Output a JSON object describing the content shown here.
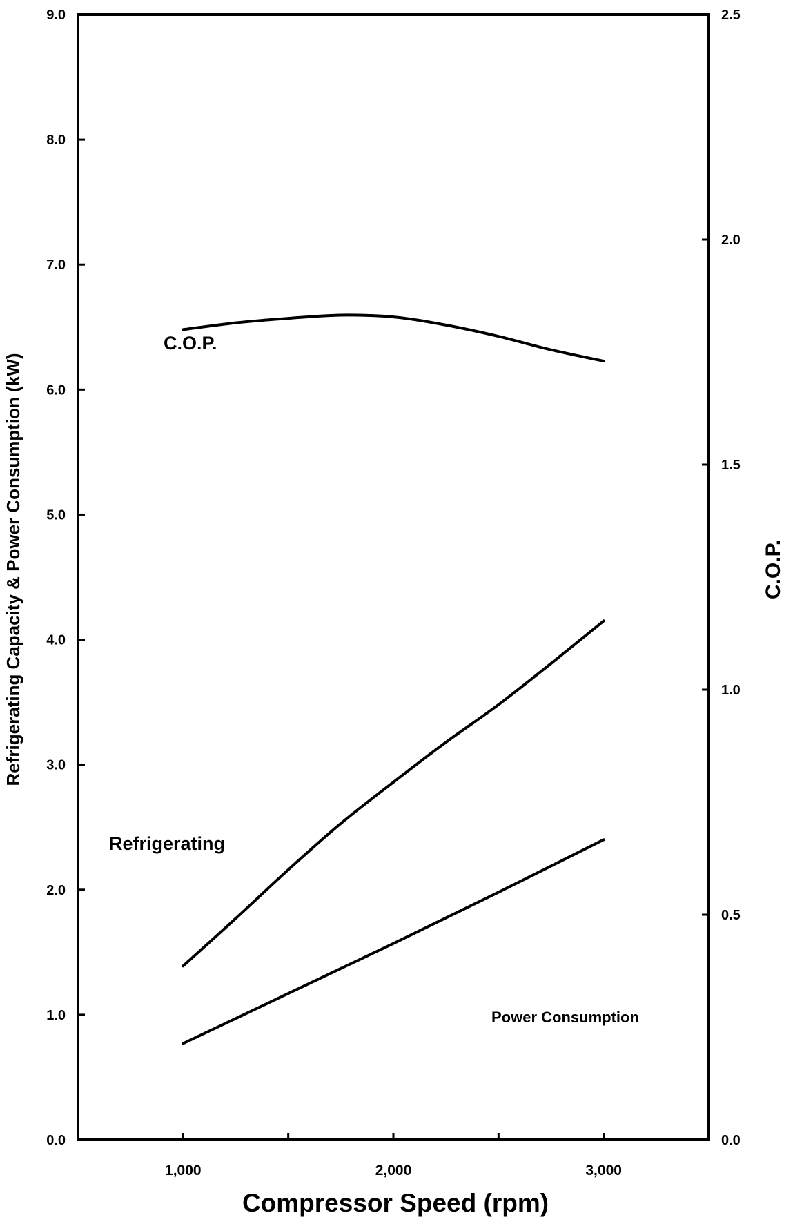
{
  "chart_data": {
    "type": "line",
    "title": "",
    "xlabel": "Compressor Speed (rpm)",
    "ylabel_left": "Refrigerating Capacity & Power Consumption (kW)",
    "ylabel_right": "C.O.P.",
    "xlim": [
      500,
      3500
    ],
    "ylim_left": [
      0,
      9
    ],
    "ylim_right": [
      0,
      2.5
    ],
    "x_ticks": [
      1000,
      1500,
      2000,
      2500,
      3000
    ],
    "x_tick_labels": [
      "1,000",
      "",
      "2,000",
      "",
      "3,000"
    ],
    "y_left_ticks": [
      0,
      1,
      2,
      3,
      4,
      5,
      6,
      7,
      8,
      9
    ],
    "y_left_tick_labels": [
      "0.0",
      "1.0",
      "2.0",
      "3.0",
      "4.0",
      "5.0",
      "6.0",
      "7.0",
      "8.0",
      "9.0"
    ],
    "y_right_ticks": [
      0,
      0.5,
      1.0,
      1.5,
      2.0,
      2.5
    ],
    "y_right_tick_labels": [
      "0.0",
      "0.5",
      "1.0",
      "1.5",
      "2.0",
      "2.5"
    ],
    "grid": false,
    "legend": "none",
    "series": [
      {
        "name": "C.O.P.",
        "axis": "right",
        "label": "C.O.P.",
        "points": [
          [
            1000,
            1.8
          ],
          [
            1250,
            1.815
          ],
          [
            1500,
            1.825
          ],
          [
            1750,
            1.832
          ],
          [
            2000,
            1.828
          ],
          [
            2250,
            1.81
          ],
          [
            2500,
            1.785
          ],
          [
            2750,
            1.755
          ],
          [
            3000,
            1.73
          ]
        ]
      },
      {
        "name": "Refrigerating",
        "axis": "left",
        "label": "Refrigerating",
        "points": [
          [
            1000,
            1.39
          ],
          [
            1250,
            1.77
          ],
          [
            1500,
            2.16
          ],
          [
            1750,
            2.53
          ],
          [
            2000,
            2.86
          ],
          [
            2250,
            3.18
          ],
          [
            2500,
            3.48
          ],
          [
            2750,
            3.81
          ],
          [
            3000,
            4.15
          ]
        ]
      },
      {
        "name": "Power Consumption",
        "axis": "left",
        "label": "Power Consumption",
        "points": [
          [
            1000,
            0.77
          ],
          [
            1500,
            1.17
          ],
          [
            2000,
            1.57
          ],
          [
            2500,
            1.98
          ],
          [
            3000,
            2.4
          ]
        ]
      }
    ]
  }
}
